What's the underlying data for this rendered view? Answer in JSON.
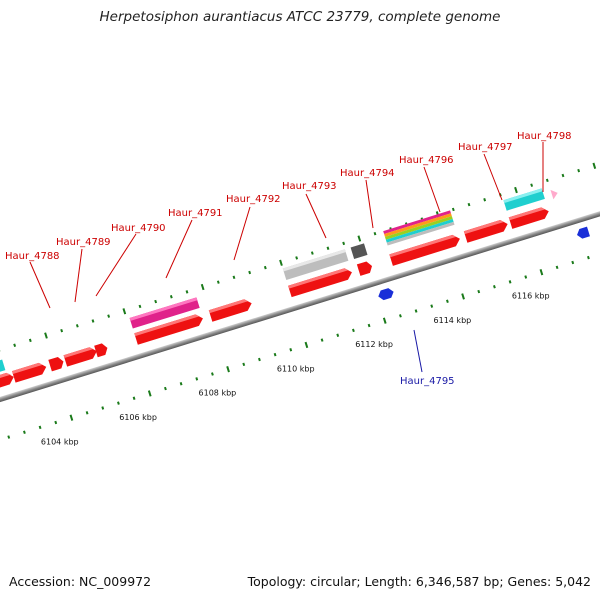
{
  "title": "Herpetosiphon aurantiacus ATCC 23779, complete genome",
  "footer": {
    "accession": "Accession: NC_009972",
    "summary": "Topology: circular; Length: 6,346,587 bp; Genes: 5,042"
  },
  "scale_labels": [
    "6104 kbp",
    "6106 kbp",
    "6108 kbp",
    "6110 kbp",
    "6112 kbp",
    "6114 kbp",
    "6116 kbp"
  ],
  "gene_labels": [
    {
      "name": "Haur_4788",
      "strand": "forward"
    },
    {
      "name": "Haur_4789",
      "strand": "forward"
    },
    {
      "name": "Haur_4790",
      "strand": "forward"
    },
    {
      "name": "Haur_4791",
      "strand": "forward"
    },
    {
      "name": "Haur_4792",
      "strand": "forward"
    },
    {
      "name": "Haur_4793",
      "strand": "forward"
    },
    {
      "name": "Haur_4794",
      "strand": "forward"
    },
    {
      "name": "Haur_4795",
      "strand": "reverse"
    },
    {
      "name": "Haur_4796",
      "strand": "forward"
    },
    {
      "name": "Haur_4797",
      "strand": "forward"
    },
    {
      "name": "Haur_4798",
      "strand": "forward"
    }
  ],
  "colors": {
    "cds": "#ee1111",
    "cds_top": "#ff6a6a",
    "backbone": "#8a8a8a",
    "tick": "#1a7a1a",
    "forward_label": "#cc0000",
    "reverse_label": "#1a1aa6",
    "reverse_feature": "#1a2fd8",
    "cyan_feature": "#1fcfcf",
    "magenta_feature": "#e0228a",
    "gray_feature": "#bdbdbd",
    "dark_feature": "#555555"
  }
}
